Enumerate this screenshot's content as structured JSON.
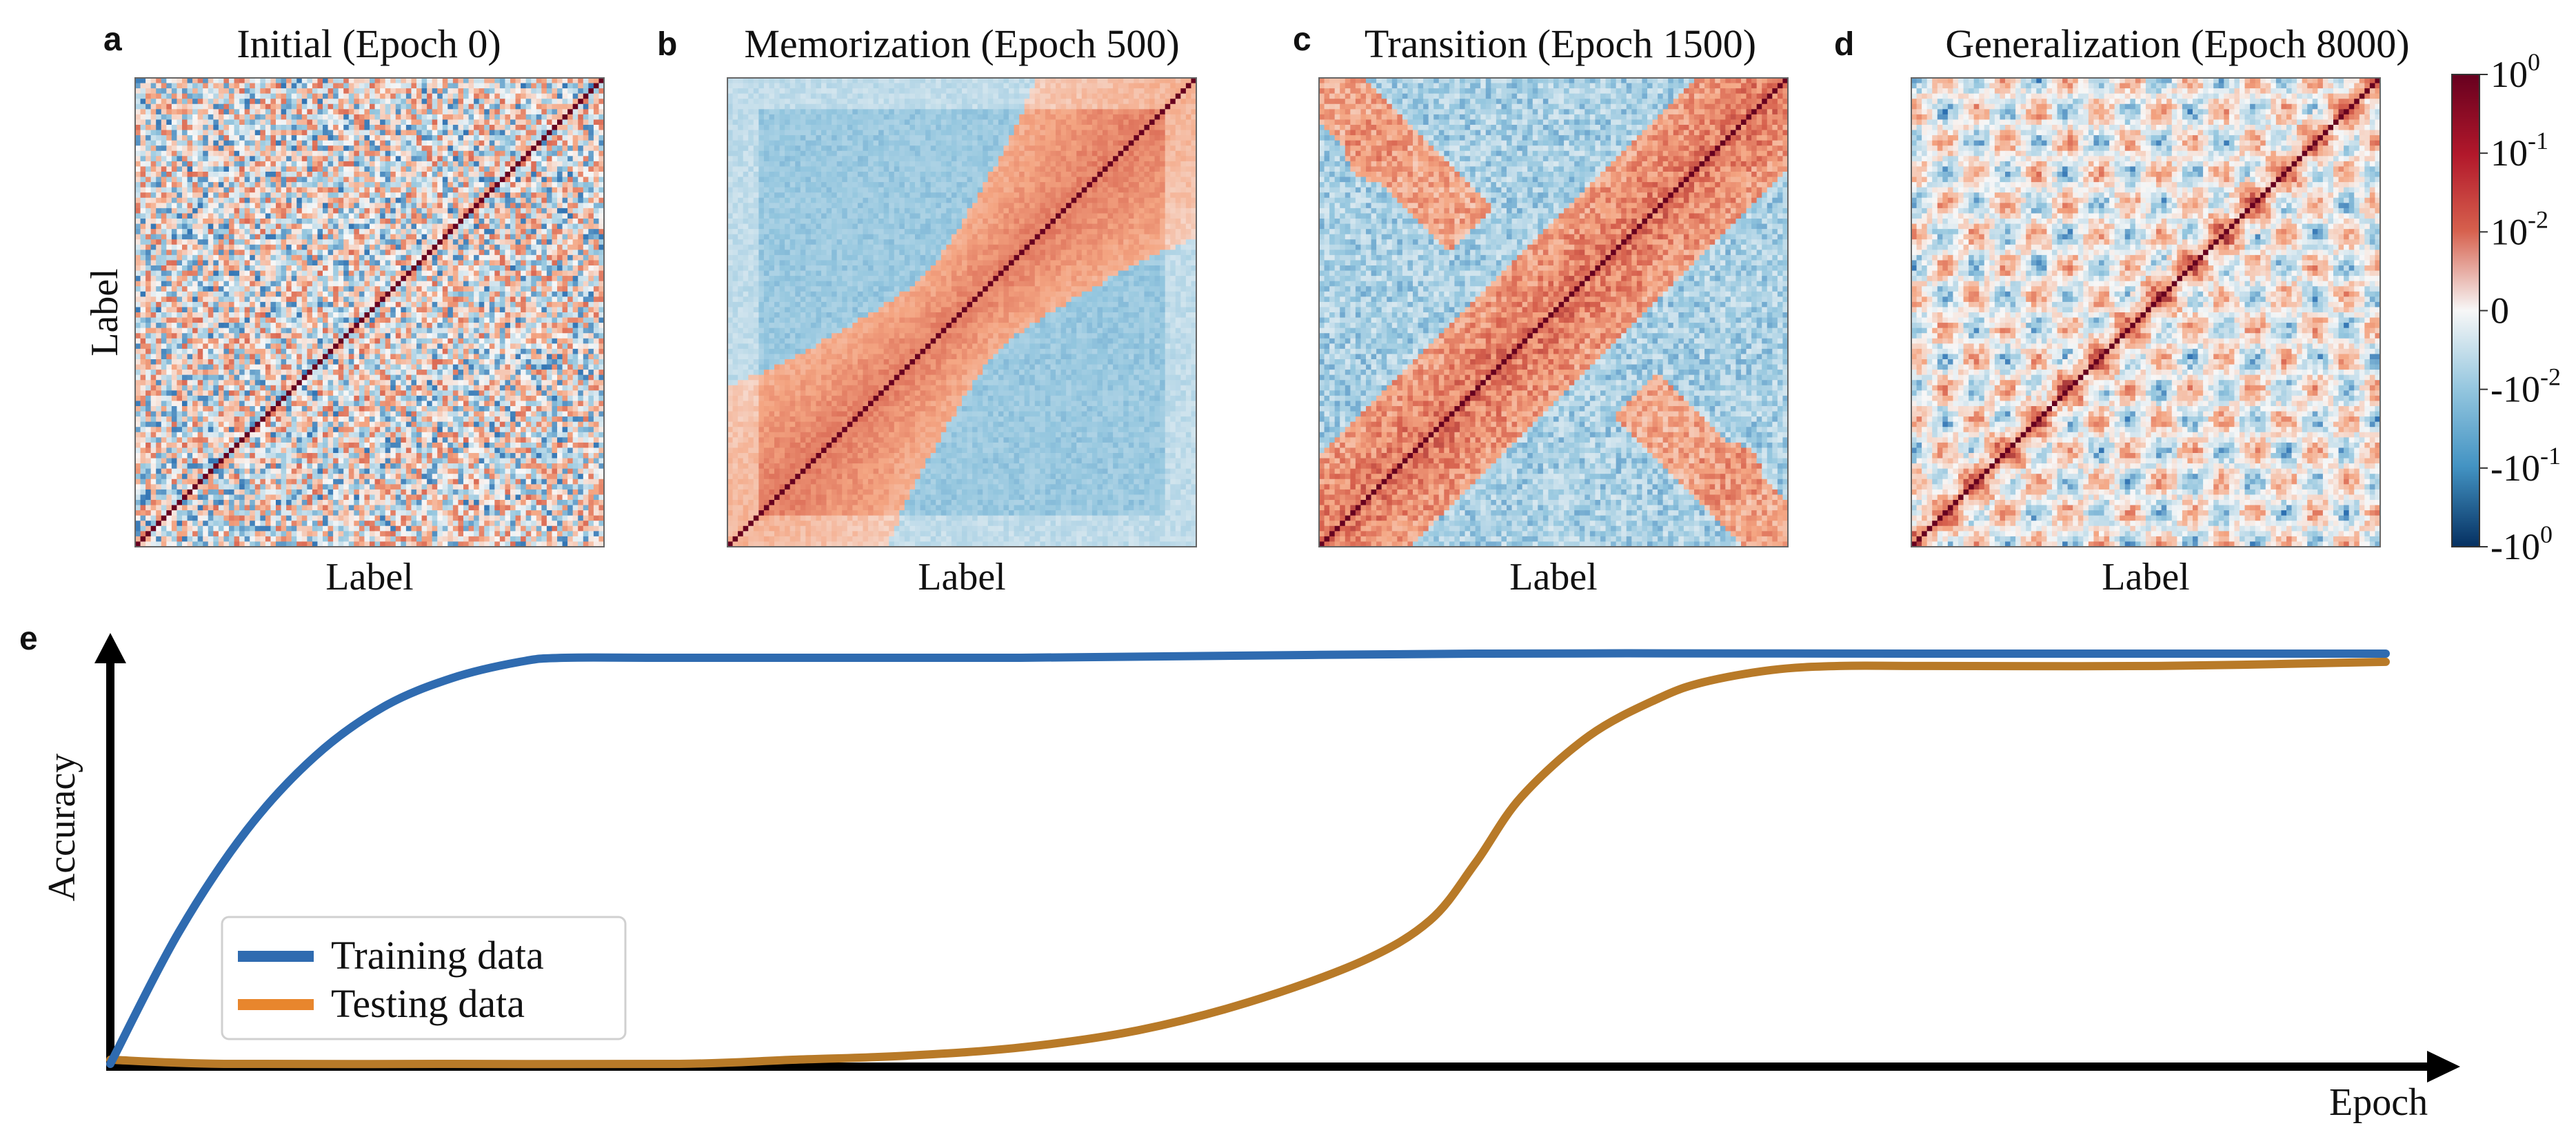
{
  "heatmap_panels": [
    {
      "letter": "a",
      "title": "Initial (Epoch 0)",
      "xlabel": "Label",
      "ylabel": "Label",
      "pattern": "random"
    },
    {
      "letter": "b",
      "title": "Memorization (Epoch 500)",
      "xlabel": "Label",
      "ylabel": "",
      "pattern": "memorization"
    },
    {
      "letter": "c",
      "title": "Transition (Epoch 1500)",
      "xlabel": "Label",
      "ylabel": "",
      "pattern": "transition"
    },
    {
      "letter": "d",
      "title": "Generalization (Epoch 8000)",
      "xlabel": "Label",
      "ylabel": "",
      "pattern": "generalization"
    }
  ],
  "colorbar": {
    "scale": "symlog",
    "tick_labels": [
      {
        "base": "10",
        "exp": "0"
      },
      {
        "base": "10",
        "exp": "-1"
      },
      {
        "base": "10",
        "exp": "-2"
      },
      {
        "base": "0",
        "exp": ""
      },
      {
        "base": "-10",
        "exp": "-2"
      },
      {
        "base": "-10",
        "exp": "-1"
      },
      {
        "base": "-10",
        "exp": "0"
      }
    ],
    "colors": {
      "max": "#67001f",
      "high": "#d6604d",
      "mid": "#f7f7f7",
      "low": "#92c5de",
      "min": "#053061"
    }
  },
  "line_panel": {
    "letter": "e",
    "xlabel": "Epoch",
    "ylabel": "Accuracy",
    "legend_position": "lower-left"
  },
  "chart_data": [
    {
      "type": "heatmap",
      "title": "Initial (Epoch 0)",
      "xlabel": "Label",
      "ylabel": "Label",
      "value_range": [
        -1,
        1
      ],
      "scale": "symlog",
      "diagonal_value": 1,
      "description_values": "random off-diagonal similarity"
    },
    {
      "type": "heatmap",
      "title": "Memorization (Epoch 500)",
      "xlabel": "Label",
      "value_range": [
        -1,
        1
      ],
      "scale": "symlog",
      "diagonal_value": 1
    },
    {
      "type": "heatmap",
      "title": "Transition (Epoch 1500)",
      "xlabel": "Label",
      "value_range": [
        -1,
        1
      ],
      "scale": "symlog",
      "diagonal_value": 1
    },
    {
      "type": "heatmap",
      "title": "Generalization (Epoch 8000)",
      "xlabel": "Label",
      "value_range": [
        -1,
        1
      ],
      "scale": "symlog",
      "diagonal_value": 1
    },
    {
      "type": "line",
      "xlabel": "Epoch",
      "ylabel": "Accuracy",
      "xlim": [
        0,
        1
      ],
      "ylim": [
        0,
        1
      ],
      "legend": "lower-left",
      "series": [
        {
          "name": "Training data",
          "color": "#2f6bb0",
          "x": [
            0,
            0.03,
            0.06,
            0.09,
            0.12,
            0.15,
            0.18,
            0.2,
            0.25,
            0.4,
            0.6,
            0.8,
            1.0
          ],
          "y": [
            0,
            0.32,
            0.57,
            0.75,
            0.87,
            0.94,
            0.98,
            0.99,
            0.99,
            0.99,
            1.0,
            1.0,
            1.0
          ]
        },
        {
          "name": "Testing data",
          "color": "#b87a28",
          "x": [
            0,
            0.05,
            0.15,
            0.25,
            0.3,
            0.35,
            0.4,
            0.45,
            0.5,
            0.55,
            0.58,
            0.6,
            0.62,
            0.65,
            0.68,
            0.7,
            0.73,
            0.76,
            0.8,
            0.9,
            1.0
          ],
          "y": [
            0.01,
            0.0,
            0.0,
            0.0,
            0.01,
            0.02,
            0.04,
            0.08,
            0.15,
            0.25,
            0.35,
            0.49,
            0.65,
            0.8,
            0.89,
            0.93,
            0.96,
            0.97,
            0.97,
            0.97,
            0.98
          ]
        }
      ]
    }
  ]
}
